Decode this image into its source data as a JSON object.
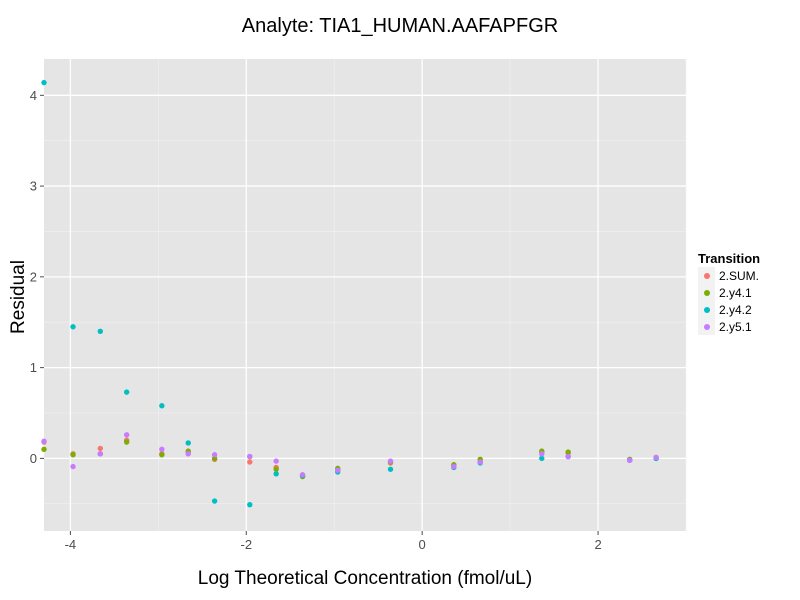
{
  "chart_data": {
    "type": "scatter",
    "title": "Analyte: TIA1_HUMAN.AAFAPFGR",
    "xlabel": "Log Theoretical Concentration (fmol/uL)",
    "ylabel": "Residual",
    "xlim": [
      -4.3,
      3.0
    ],
    "ylim": [
      -0.8,
      4.4
    ],
    "xticks": [
      -4,
      -2,
      0,
      2
    ],
    "xtick_labels": [
      "-4",
      "-2",
      "0",
      "2"
    ],
    "yticks": [
      0,
      1,
      2,
      3,
      4
    ],
    "ytick_labels": [
      "0",
      "1",
      "2",
      "3",
      "4"
    ],
    "grid": true,
    "legend_position": "right",
    "legend_title": "Transition",
    "series": [
      {
        "name": "2.SUM.",
        "color": "#F8766D",
        "points": [
          [
            -4.3,
            0.18
          ],
          [
            -3.97,
            0.05
          ],
          [
            -3.66,
            0.11
          ],
          [
            -3.36,
            0.2
          ],
          [
            -2.96,
            0.05
          ],
          [
            -2.66,
            0.07
          ],
          [
            -2.36,
            -0.01
          ],
          [
            -1.96,
            -0.04
          ],
          [
            -1.66,
            -0.1
          ],
          [
            -1.36,
            -0.19
          ],
          [
            -0.96,
            -0.13
          ],
          [
            -0.36,
            -0.05
          ],
          [
            0.36,
            -0.08
          ],
          [
            0.66,
            -0.03
          ],
          [
            1.36,
            0.07
          ],
          [
            1.66,
            0.06
          ],
          [
            2.36,
            -0.02
          ],
          [
            2.66,
            0.0
          ]
        ]
      },
      {
        "name": "2.y4.1",
        "color": "#7CAE00",
        "points": [
          [
            -4.3,
            0.1
          ],
          [
            -3.97,
            0.04
          ],
          [
            -3.66,
            0.05
          ],
          [
            -3.36,
            0.18
          ],
          [
            -2.96,
            0.04
          ],
          [
            -2.66,
            0.08
          ],
          [
            -2.36,
            0.0
          ],
          [
            -1.96,
            0.02
          ],
          [
            -1.66,
            -0.12
          ],
          [
            -1.36,
            -0.2
          ],
          [
            -0.96,
            -0.11
          ],
          [
            -0.36,
            -0.04
          ],
          [
            0.36,
            -0.07
          ],
          [
            0.66,
            -0.01
          ],
          [
            1.36,
            0.08
          ],
          [
            1.66,
            0.07
          ],
          [
            2.36,
            -0.01
          ],
          [
            2.66,
            0.01
          ]
        ]
      },
      {
        "name": "2.y4.2",
        "color": "#00BFC4",
        "points": [
          [
            -4.3,
            4.14
          ],
          [
            -3.97,
            1.45
          ],
          [
            -3.66,
            1.4
          ],
          [
            -3.36,
            0.73
          ],
          [
            -2.96,
            0.58
          ],
          [
            -2.66,
            0.17
          ],
          [
            -2.36,
            -0.47
          ],
          [
            -1.96,
            -0.51
          ],
          [
            -1.66,
            -0.17
          ],
          [
            -1.36,
            -0.19
          ],
          [
            -0.96,
            -0.15
          ],
          [
            -0.36,
            -0.12
          ],
          [
            0.36,
            -0.1
          ],
          [
            0.66,
            -0.05
          ],
          [
            1.36,
            0.0
          ],
          [
            1.66,
            0.02
          ],
          [
            2.36,
            -0.02
          ],
          [
            2.66,
            0.0
          ]
        ]
      },
      {
        "name": "2.y5.1",
        "color": "#C77CFF",
        "points": [
          [
            -4.3,
            0.19
          ],
          [
            -3.97,
            -0.09
          ],
          [
            -3.66,
            0.05
          ],
          [
            -3.36,
            0.26
          ],
          [
            -2.96,
            0.1
          ],
          [
            -2.66,
            0.05
          ],
          [
            -2.36,
            0.04
          ],
          [
            -1.96,
            0.02
          ],
          [
            -1.66,
            -0.03
          ],
          [
            -1.36,
            -0.18
          ],
          [
            -0.96,
            -0.13
          ],
          [
            -0.36,
            -0.03
          ],
          [
            0.36,
            -0.09
          ],
          [
            0.66,
            -0.04
          ],
          [
            1.36,
            0.05
          ],
          [
            1.66,
            0.02
          ],
          [
            2.36,
            -0.02
          ],
          [
            2.66,
            0.01
          ]
        ]
      }
    ]
  }
}
